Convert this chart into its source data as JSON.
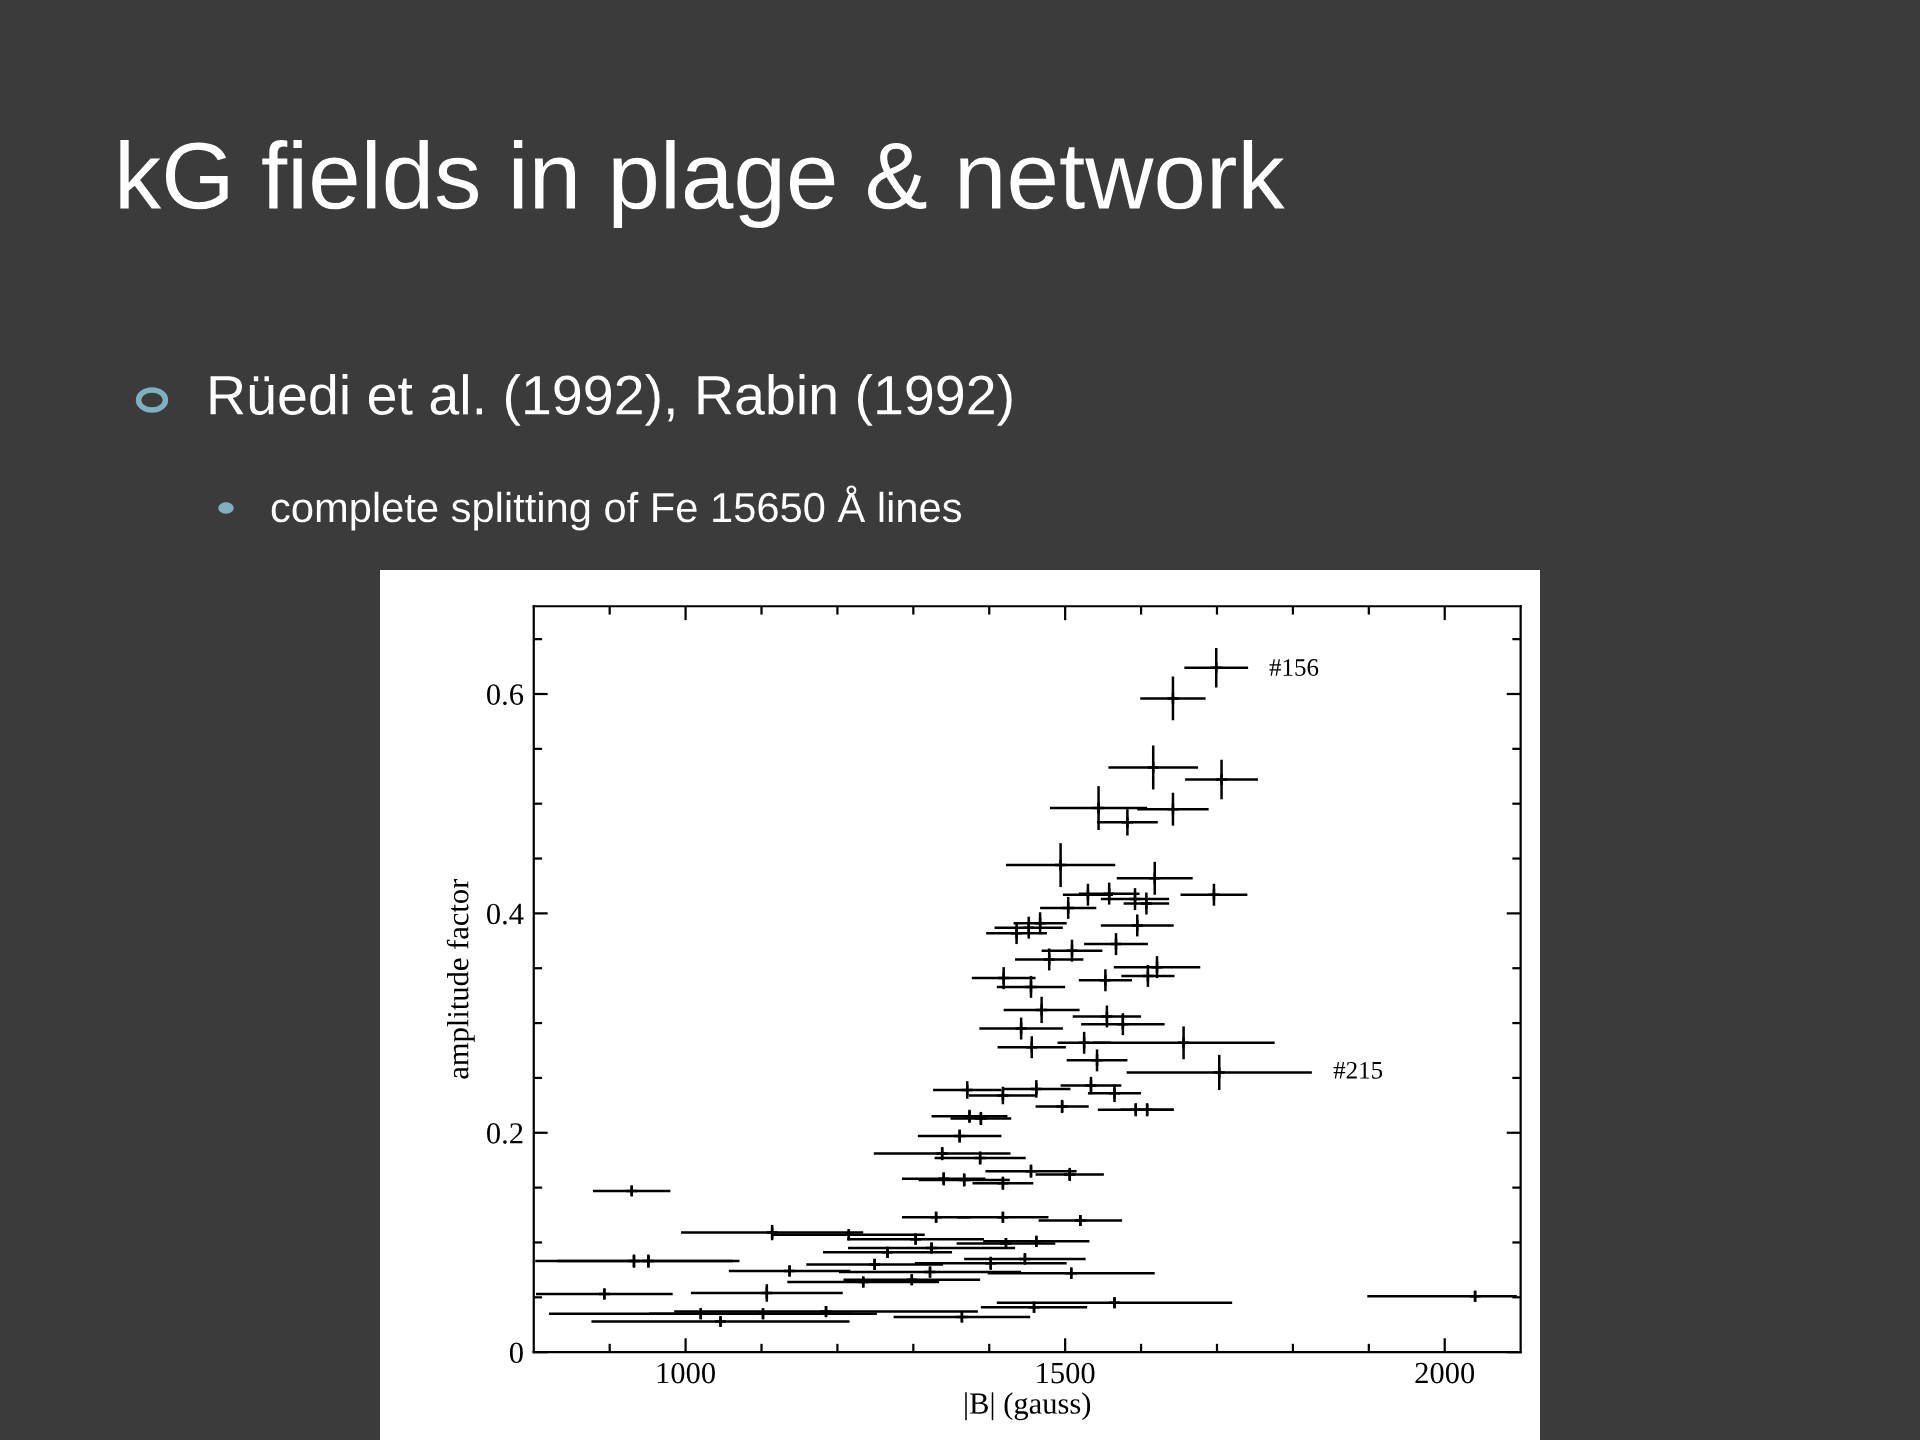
{
  "chart_data": {
    "type": "scatter",
    "title": "kG fields in plage & network",
    "subtitle": "Rüedi et al. (1992), Rabin (1992)",
    "xlabel": "|B| (gauss)",
    "ylabel": "amplitude factor",
    "annotations": [
      "complete splitting of Fe 15650 Å lines",
      "#156",
      "#215"
    ],
    "marker": "cross",
    "grid": false,
    "legend": false,
    "xlim": [
      800,
      2100
    ],
    "ylim": [
      0,
      0.68
    ],
    "xticks": [
      {
        "value": 900,
        "label": null
      },
      1000,
      {
        "value": 1100,
        "label": null
      },
      {
        "value": 1200,
        "label": null
      },
      {
        "value": 1300,
        "label": null
      },
      {
        "value": 1400,
        "label": null
      },
      1500,
      {
        "value": 1600,
        "label": null
      },
      {
        "value": 1700,
        "label": null
      },
      {
        "value": 1800,
        "label": null
      },
      {
        "value": 1900,
        "label": null
      },
      2000
    ],
    "yticks": [
      0,
      {
        "value": 0.05,
        "label": null
      },
      {
        "value": 0.1,
        "label": null
      },
      {
        "value": 0.15,
        "label": null
      },
      0.2,
      {
        "value": 0.25,
        "label": null
      },
      {
        "value": 0.3,
        "label": null
      },
      {
        "value": 0.35,
        "label": null
      },
      0.4,
      {
        "value": 0.45,
        "label": null
      },
      {
        "value": 0.5,
        "label": null
      },
      {
        "value": 0.55,
        "label": null
      },
      0.6,
      {
        "value": 0.65,
        "label": null
      }
    ],
    "series": [
      {
        "color": "#000000",
        "x": [
          1699,
          1642,
          1616,
          1706,
          1544,
          1642,
          1582,
          1494,
          1618,
          1696,
          1530,
          1558,
          1592,
          1607,
          1504,
          1595,
          1452,
          1436,
          1467,
          1567,
          1509,
          1479,
          1621,
          1419,
          1455,
          1553,
          1609,
          1469,
          1555,
          1576,
          1442,
          1656,
          1525,
          1456,
          1542,
          1703,
          1371,
          1418,
          1462,
          1534,
          1565,
          1496,
          1593,
          1608,
          1374,
          1389,
          1361,
          1338,
          1388,
          1455,
          1506,
          1340,
          1367,
          1418,
          929,
          1330,
          1418,
          1520,
          1114,
          1215,
          1303,
          1462,
          1422,
          1324,
          1266,
          1447,
          932,
          951,
          1402,
          1249,
          1137,
          1322,
          1508,
          1234,
          1298,
          1107,
          893,
          1565,
          1459,
          1185,
          1102,
          1020,
          1364,
          1046,
          2040
        ],
        "values": [
          0.624,
          0.596,
          0.533,
          0.522,
          0.496,
          0.495,
          0.483,
          0.444,
          0.432,
          0.417,
          0.417,
          0.418,
          0.413,
          0.409,
          0.405,
          0.389,
          0.387,
          0.382,
          0.391,
          0.372,
          0.366,
          0.358,
          0.351,
          0.341,
          0.333,
          0.339,
          0.343,
          0.312,
          0.306,
          0.299,
          0.295,
          0.282,
          0.282,
          0.278,
          0.266,
          0.255,
          0.239,
          0.234,
          0.24,
          0.243,
          0.236,
          0.224,
          0.221,
          0.221,
          0.215,
          0.213,
          0.197,
          0.181,
          0.177,
          0.165,
          0.162,
          0.158,
          0.157,
          0.154,
          0.147,
          0.123,
          0.123,
          0.12,
          0.109,
          0.107,
          0.103,
          0.101,
          0.099,
          0.095,
          0.091,
          0.085,
          0.083,
          0.083,
          0.081,
          0.08,
          0.074,
          0.073,
          0.072,
          0.064,
          0.066,
          0.054,
          0.053,
          0.045,
          0.041,
          0.037,
          0.035,
          0.035,
          0.032,
          0.028,
          0.051
        ],
        "xerrors": [
          42,
          43,
          59,
          48,
          64,
          47,
          40,
          72,
          50,
          44,
          33,
          40,
          45,
          30,
          37,
          48,
          45,
          40,
          35,
          42,
          40,
          45,
          57,
          42,
          45,
          35,
          35,
          50,
          45,
          55,
          55,
          120,
          35,
          45,
          40,
          122,
          45,
          45,
          45,
          40,
          35,
          35,
          50,
          35,
          50,
          40,
          55,
          90,
          60,
          60,
          45,
          55,
          60,
          40,
          51,
          45,
          60,
          55,
          120,
          100,
          90,
          70,
          65,
          110,
          85,
          80,
          130,
          120,
          100,
          90,
          80,
          120,
          110,
          100,
          90,
          100,
          90,
          155,
          70,
          200,
          150,
          200,
          90,
          170,
          [
            1898,
            2095
          ]
        ],
        "errors": [
          0.018,
          0.02,
          0.02,
          0.018,
          0.02,
          0.015,
          0.012,
          0.02,
          0.015,
          0.01,
          0.01,
          0.01,
          0.01,
          0.01,
          0.01,
          0.01,
          0.01,
          0.01,
          0.01,
          0.01,
          0.01,
          0.01,
          0.01,
          0.01,
          0.01,
          0.01,
          0.01,
          0.012,
          0.01,
          0.01,
          0.01,
          0.015,
          0.01,
          0.01,
          0.01,
          0.016,
          0.008,
          0.008,
          0.008,
          0.008,
          0.008,
          0.006,
          0.006,
          0.006,
          0.006,
          0.006,
          0.006,
          0.006,
          0.006,
          0.006,
          0.006,
          0.006,
          0.006,
          0.006,
          0.004,
          0.005,
          0.005,
          0.005,
          0.007,
          0.005,
          0.005,
          0.005,
          0.005,
          0.005,
          0.005,
          0.005,
          0.006,
          0.006,
          0.006,
          0.005,
          0.005,
          0.005,
          0.005,
          0.005,
          0.005,
          0.008,
          0.005,
          0.005,
          0.005,
          0.005,
          0.005,
          0.005,
          0.005,
          0.004,
          0.005
        ]
      }
    ]
  }
}
